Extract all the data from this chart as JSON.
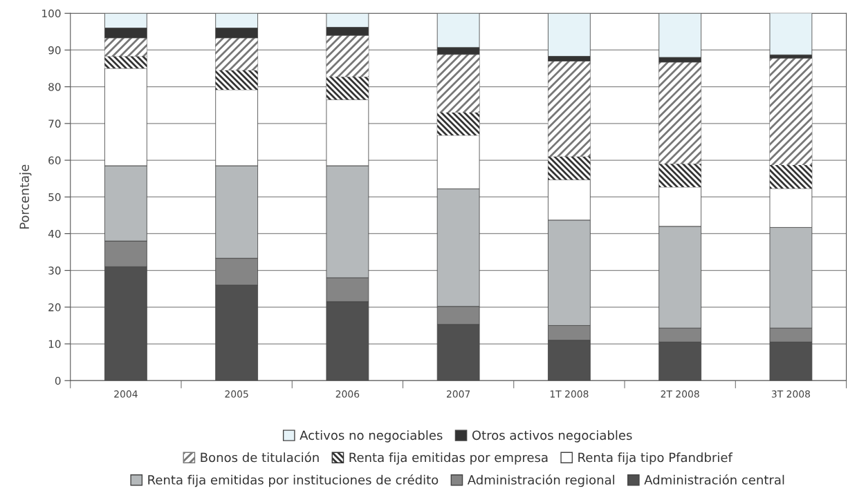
{
  "chart_data": {
    "type": "bar",
    "stacked": true,
    "ylabel": "Porcentaje",
    "categories": [
      "2004",
      "2005",
      "2006",
      "2007",
      "1T 2008",
      "2T 2008",
      "3T 2008"
    ],
    "ylim": [
      0,
      100
    ],
    "yticks": [
      0,
      10,
      20,
      30,
      40,
      50,
      60,
      70,
      80,
      90,
      100
    ],
    "grid": "y",
    "legend": "bottom",
    "series": [
      {
        "name": "Administración central",
        "color": "#505050",
        "values": [
          31,
          26,
          21.5,
          15.3,
          11,
          10.5,
          10.5
        ]
      },
      {
        "name": "Administración regional",
        "color": "#858585",
        "values": [
          7,
          7.3,
          6.5,
          4.9,
          4,
          3.8,
          3.8
        ]
      },
      {
        "name": "Renta fija emitidas por instituciones de crédito",
        "color": "#b5b9bb",
        "values": [
          20.5,
          25.2,
          30.5,
          32,
          28.7,
          27.7,
          27.4
        ]
      },
      {
        "name": "Renta fija tipo Pfandbrief",
        "color": "#ffffff",
        "values": [
          26.5,
          20.7,
          18,
          14.6,
          11,
          10.7,
          10.6
        ]
      },
      {
        "name": "Renta fija emitidas por empresa",
        "color": "#333333",
        "values": [
          3.3,
          5.3,
          6.2,
          6.2,
          6.3,
          6.3,
          6.4
        ]
      },
      {
        "name": "Bonos de titulación",
        "color": "#777777",
        "values": [
          5,
          8.8,
          11.3,
          15.8,
          26,
          27.7,
          29.1
        ]
      },
      {
        "name": "Otros activos negociables",
        "color": "#333333",
        "values": [
          2.7,
          2.7,
          2.2,
          1.9,
          1.3,
          1.3,
          0.9
        ]
      },
      {
        "name": "Activos no negociables",
        "color": "#e6f3f8",
        "values": [
          4,
          4,
          3.8,
          9.3,
          11.7,
          12,
          11.5
        ]
      }
    ]
  }
}
